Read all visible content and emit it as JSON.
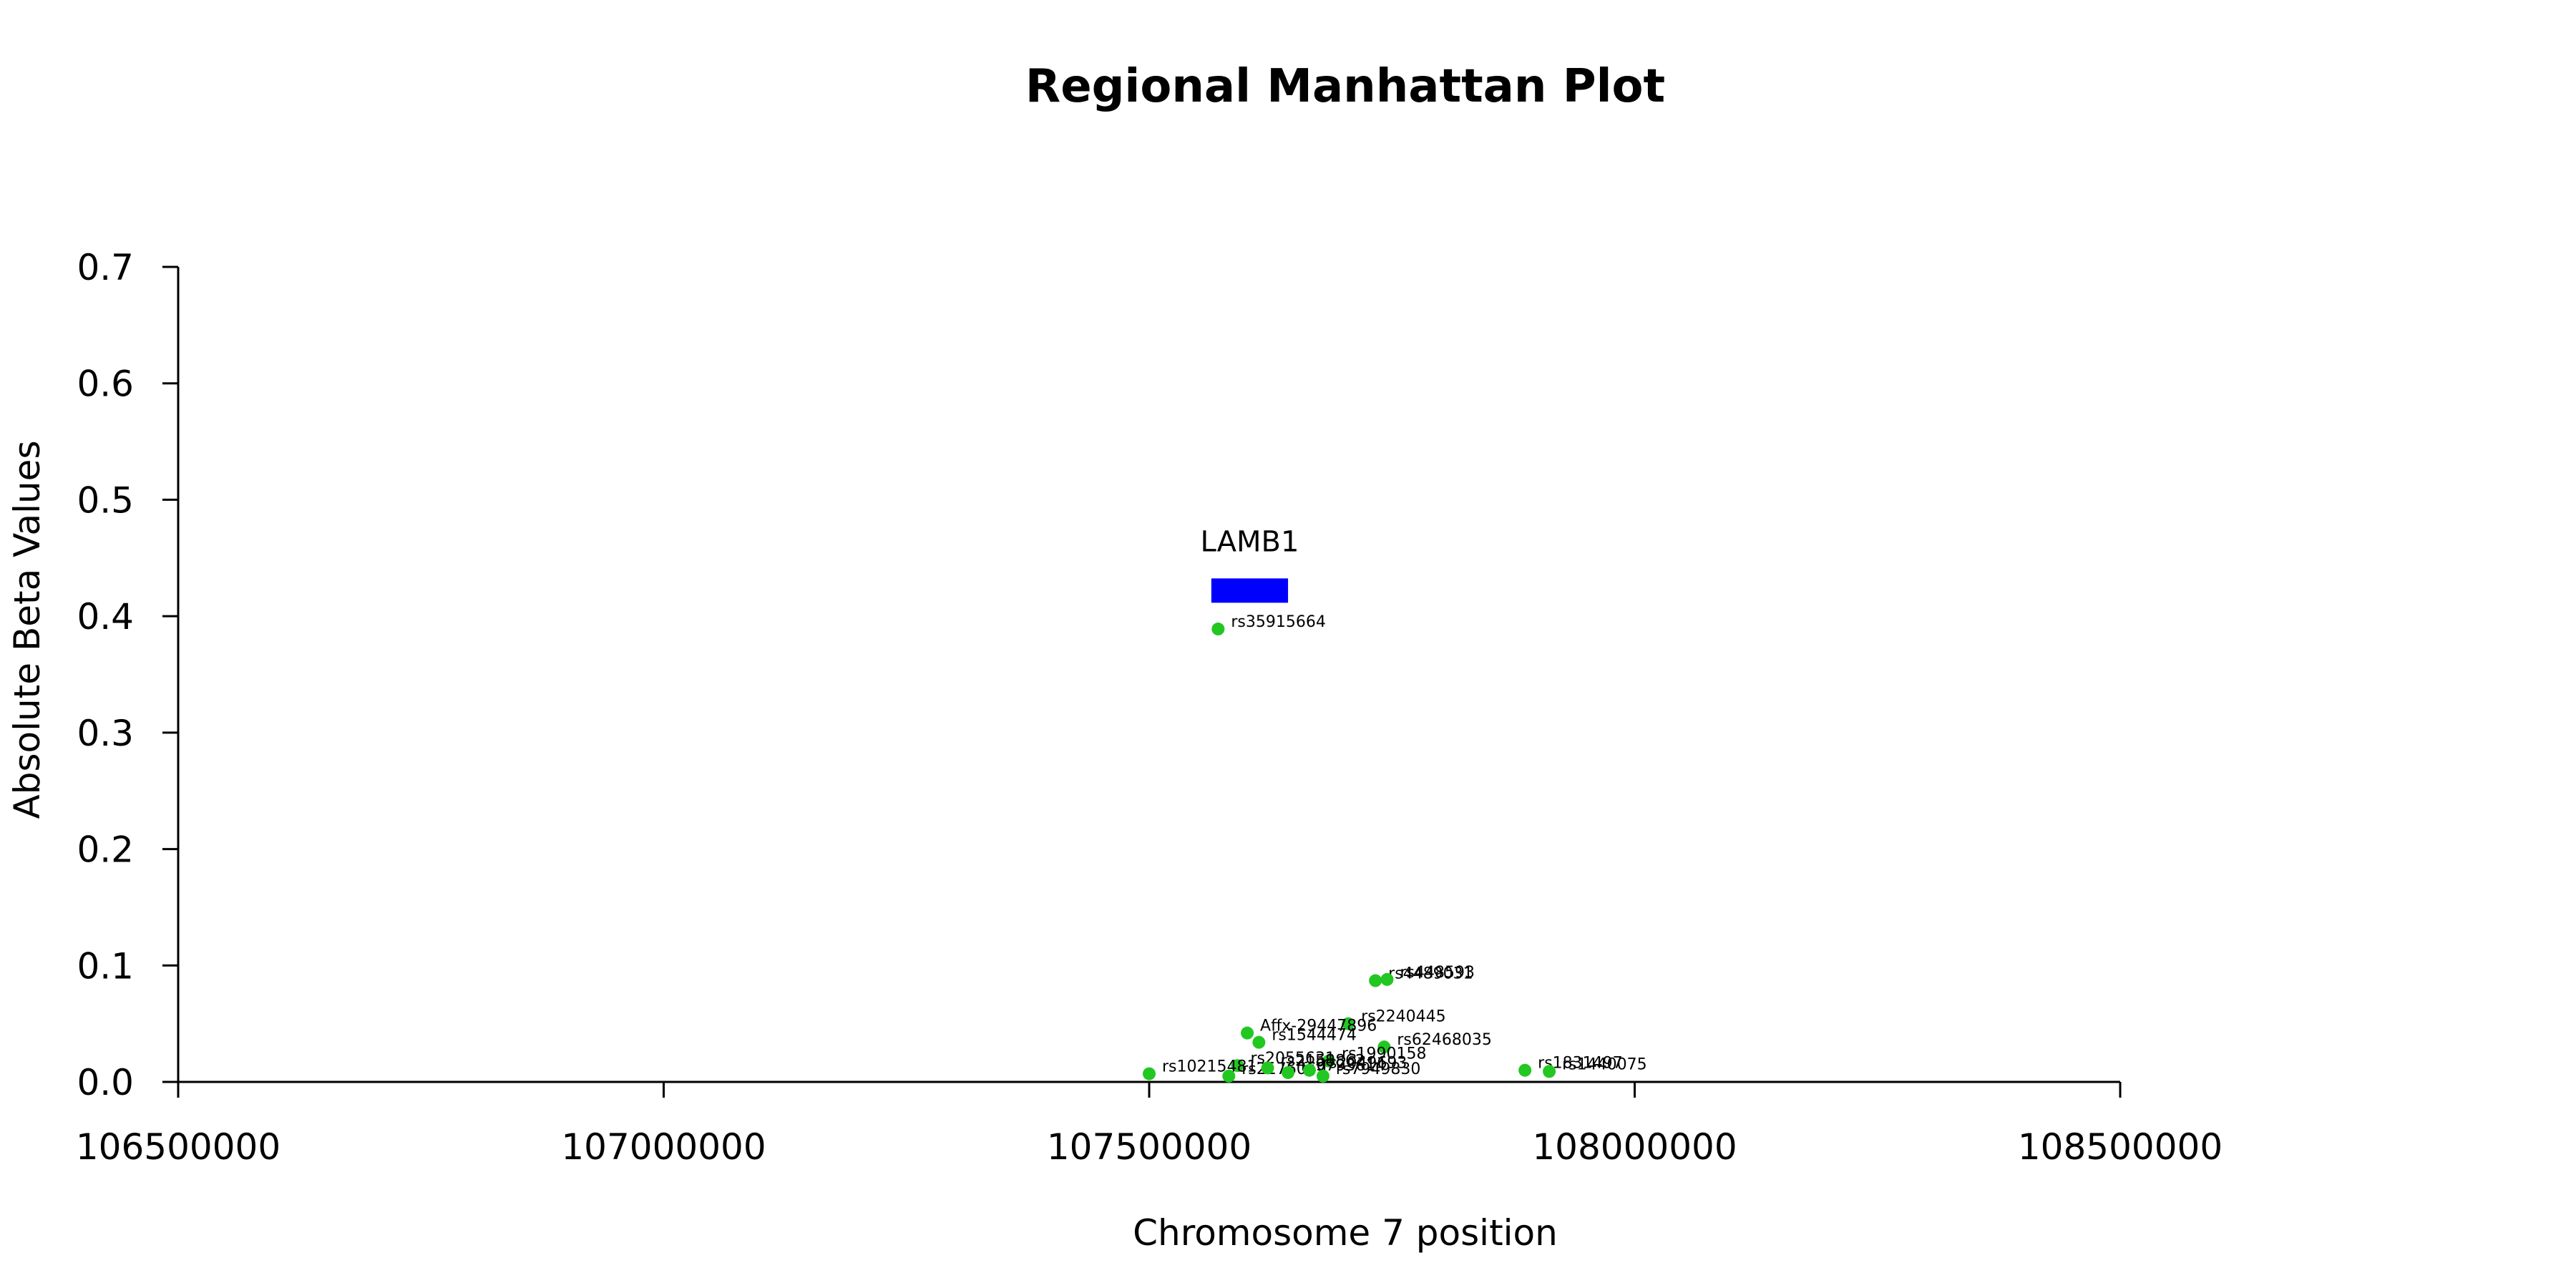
{
  "chart_data": {
    "type": "scatter",
    "title": "Regional Manhattan Plot",
    "xlabel": "Chromosome 7 position",
    "ylabel": "Absolute Beta Values",
    "xlim": [
      106500000,
      108500000
    ],
    "ylim": [
      0,
      0.7
    ],
    "x_ticks": [
      106500000,
      107000000,
      107500000,
      108000000,
      108500000
    ],
    "y_ticks": [
      0.0,
      0.1,
      0.2,
      0.3,
      0.4,
      0.5,
      0.6,
      0.7
    ],
    "x_tick_labels": [
      "106500000",
      "107000000",
      "107500000",
      "108000000",
      "108500000"
    ],
    "y_tick_labels": [
      "0.0",
      "0.1",
      "0.2",
      "0.3",
      "0.4",
      "0.5",
      "0.6",
      "0.7"
    ],
    "grid": false,
    "point_color": "#22c722",
    "gene_color": "#0000ff",
    "genes": [
      {
        "name": "LAMB1",
        "start": 107564000,
        "end": 107643000,
        "y": 0.422
      }
    ],
    "points": [
      {
        "label": "rs35915664",
        "x": 107571000,
        "y": 0.389
      },
      {
        "label": "rs4489031",
        "x": 107733000,
        "y": 0.087
      },
      {
        "label": "rs448593",
        "x": 107745000,
        "y": 0.088
      },
      {
        "label": "rs2240445",
        "x": 107705000,
        "y": 0.05
      },
      {
        "label": "Affx-29447896",
        "x": 107601000,
        "y": 0.042
      },
      {
        "label": "rs1544474",
        "x": 107613000,
        "y": 0.034
      },
      {
        "label": "rs62468035",
        "x": 107742000,
        "y": 0.03
      },
      {
        "label": "rs1990158",
        "x": 107685000,
        "y": 0.018
      },
      {
        "label": "rs2055631",
        "x": 107591000,
        "y": 0.014
      },
      {
        "label": "rs10215481",
        "x": 107500000,
        "y": 0.007
      },
      {
        "label": "rs2176069",
        "x": 107582000,
        "y": 0.005
      },
      {
        "label": "rs2158862",
        "x": 107622000,
        "y": 0.012
      },
      {
        "label": "rs9793614",
        "x": 107643000,
        "y": 0.008
      },
      {
        "label": "rs2049693",
        "x": 107665000,
        "y": 0.01
      },
      {
        "label": "rs7949830",
        "x": 107679000,
        "y": 0.005
      },
      {
        "label": "rs1831497",
        "x": 107887000,
        "y": 0.01
      },
      {
        "label": "rs1440075",
        "x": 107912000,
        "y": 0.009
      }
    ]
  }
}
